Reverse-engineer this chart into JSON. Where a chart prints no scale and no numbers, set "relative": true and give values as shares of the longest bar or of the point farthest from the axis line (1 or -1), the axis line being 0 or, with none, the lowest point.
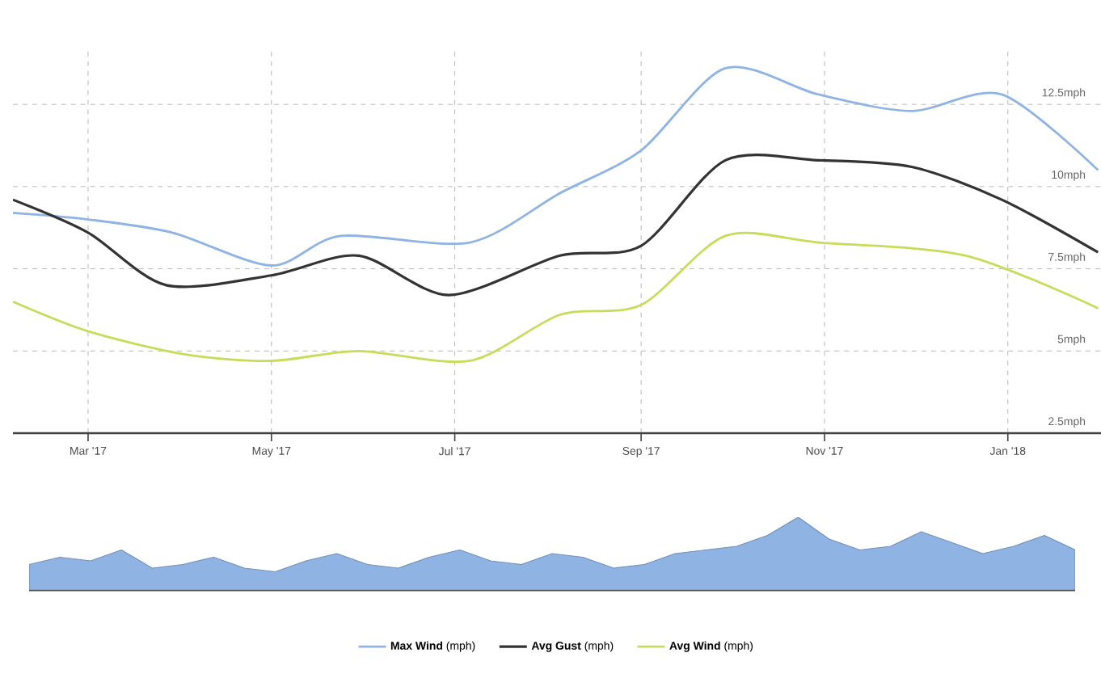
{
  "chart_data": [
    {
      "type": "line",
      "xlim": [
        "2017-02-04",
        "2018-02-01"
      ],
      "ylim": [
        2.5,
        14.2
      ],
      "xticks": [
        {
          "value": "2017-03-01",
          "label": "Mar '17"
        },
        {
          "value": "2017-05-01",
          "label": "May '17"
        },
        {
          "value": "2017-07-01",
          "label": "Jul '17"
        },
        {
          "value": "2017-09-01",
          "label": "Sep '17"
        },
        {
          "value": "2017-11-01",
          "label": "Nov '17"
        },
        {
          "value": "2018-01-01",
          "label": "Jan '18"
        }
      ],
      "yticks": [
        {
          "value": 2.5,
          "label": "2.5mph"
        },
        {
          "value": 5,
          "label": "5mph"
        },
        {
          "value": 7.5,
          "label": "7.5mph"
        },
        {
          "value": 10,
          "label": "10mph"
        },
        {
          "value": 12.5,
          "label": "12.5mph"
        }
      ],
      "grid": true,
      "legend": "bottom",
      "line_style": "solid",
      "series": [
        {
          "name": "**Max Wind** (mph)",
          "color": "#8fb4e3",
          "x": [
            "2017-02-04",
            "2017-03-01",
            "2017-03-29",
            "2017-05-01",
            "2017-05-24",
            "2017-07-06",
            "2017-08-05",
            "2017-09-01",
            "2017-09-29",
            "2017-10-30",
            "2017-11-30",
            "2017-12-30",
            "2018-01-31"
          ],
          "values": [
            9.2,
            9.0,
            8.6,
            7.6,
            8.5,
            8.3,
            9.8,
            11.1,
            13.6,
            12.8,
            12.3,
            12.8,
            10.5
          ]
        },
        {
          "name": "**Avg Gust** (mph)",
          "color": "#333333",
          "x": [
            "2017-02-04",
            "2017-03-01",
            "2017-03-27",
            "2017-05-01",
            "2017-05-30",
            "2017-06-29",
            "2017-08-05",
            "2017-09-01",
            "2017-09-29",
            "2017-10-30",
            "2017-11-30",
            "2017-12-30",
            "2018-01-31"
          ],
          "values": [
            9.6,
            8.6,
            7.0,
            7.3,
            7.9,
            6.7,
            7.9,
            8.2,
            10.8,
            10.8,
            10.6,
            9.6,
            8.0
          ]
        },
        {
          "name": "**Avg Wind** (mph)",
          "color": "#c8dc5a",
          "x": [
            "2017-02-04",
            "2017-03-01",
            "2017-04-02",
            "2017-05-01",
            "2017-05-30",
            "2017-07-06",
            "2017-08-05",
            "2017-09-01",
            "2017-09-29",
            "2017-10-30",
            "2017-12-18",
            "2018-01-31"
          ],
          "values": [
            6.5,
            5.6,
            4.9,
            4.7,
            5.0,
            4.7,
            6.1,
            6.4,
            8.5,
            8.3,
            7.9,
            6.3
          ]
        }
      ]
    },
    {
      "type": "area",
      "relative": true,
      "color": "#8fb4e3",
      "categories": [
        null,
        null,
        null,
        null,
        null,
        null,
        null,
        null,
        null,
        null,
        null,
        null,
        null,
        null,
        null,
        null,
        null,
        null,
        null,
        null,
        null,
        null,
        null,
        null,
        null,
        null,
        null,
        null,
        null,
        null,
        null,
        null,
        null,
        null,
        null
      ],
      "values": [
        0.35,
        0.45,
        0.4,
        0.55,
        0.3,
        0.35,
        0.45,
        0.3,
        0.25,
        0.4,
        0.5,
        0.35,
        0.3,
        0.45,
        0.55,
        0.4,
        0.35,
        0.5,
        0.45,
        0.3,
        0.35,
        0.5,
        0.55,
        0.6,
        0.75,
        1.0,
        0.7,
        0.55,
        0.6,
        0.8,
        0.65,
        0.5,
        0.6,
        0.75,
        0.55
      ]
    }
  ]
}
